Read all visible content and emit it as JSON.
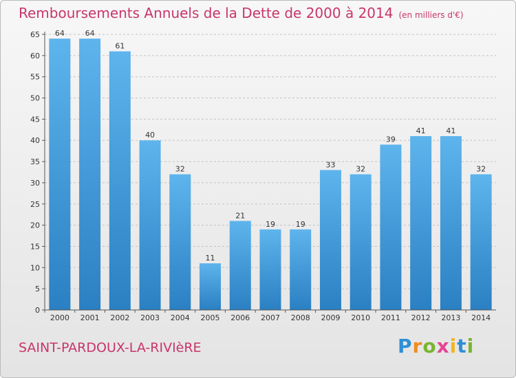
{
  "header": {
    "title": "Remboursements Annuels de la Dette de 2000 à 2014",
    "unit": "(en milliers d'€)"
  },
  "footer": {
    "commune": "SAINT-PARDOUX-LA-RIVIèRE",
    "logo": {
      "letters": [
        "P",
        "r",
        "o",
        "x",
        "i",
        "t",
        "i"
      ],
      "colors": [
        "#2e8fd6",
        "#f28c1e",
        "#79b52e",
        "#e64592",
        "#f2b51e",
        "#2e8fd6",
        "#79b52e"
      ]
    }
  },
  "colors": {
    "title": "#c8356a",
    "bar_light": "#5eb4ec",
    "bar_dark": "#2a80c2"
  },
  "chart_data": {
    "type": "bar",
    "categories": [
      "2000",
      "2001",
      "2002",
      "2003",
      "2004",
      "2005",
      "2006",
      "2007",
      "2008",
      "2009",
      "2010",
      "2011",
      "2012",
      "2013",
      "2014"
    ],
    "values": [
      64,
      64,
      61,
      40,
      32,
      11,
      21,
      19,
      19,
      33,
      32,
      39,
      41,
      41,
      32
    ],
    "title": "Remboursements Annuels de la Dette de 2000 à 2014",
    "unit": "(en milliers d'€)",
    "xlabel": "",
    "ylabel": "",
    "ylim": [
      0,
      65
    ],
    "yticks": [
      0,
      5,
      10,
      15,
      20,
      25,
      30,
      35,
      40,
      45,
      50,
      55,
      60,
      65
    ],
    "grid": true,
    "data_labels": true
  }
}
